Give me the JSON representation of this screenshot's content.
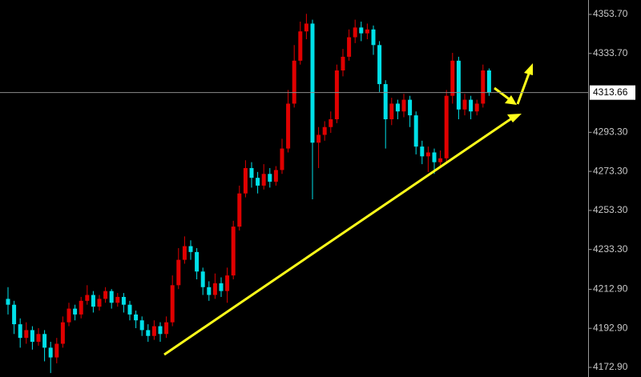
{
  "chart_data": {
    "type": "candlestick",
    "up_color": "#e00000",
    "down_color": "#00e0e8",
    "ylim": [
      4167.98,
      4361.08
    ],
    "yticks": [
      {
        "value": 4353.7,
        "label": "4353.70"
      },
      {
        "value": 4333.7,
        "label": "4333.70"
      },
      {
        "value": 4293.3,
        "label": "4293.30"
      },
      {
        "value": 4273.3,
        "label": "4273.30"
      },
      {
        "value": 4253.3,
        "label": "4253.30"
      },
      {
        "value": 4233.3,
        "label": "4233.30"
      },
      {
        "value": 4212.9,
        "label": "4212.90"
      },
      {
        "value": 4192.9,
        "label": "4192.90"
      },
      {
        "value": 4172.9,
        "label": "4172.90"
      }
    ],
    "current_price": {
      "value": 4313.66,
      "label": "4313.66"
    },
    "open": [
      4208,
      4205,
      4195,
      4188,
      4192,
      4186,
      4190,
      4183,
      4178,
      4185,
      4196,
      4203,
      4200,
      4207,
      4210,
      4204,
      4208,
      4212,
      4206,
      4209,
      4205,
      4200,
      4197,
      4192,
      4189,
      4194,
      4190,
      4196,
      4215,
      4228,
      4235,
      4232,
      4222,
      4214,
      4210,
      4216,
      4212,
      4220,
      4245,
      4262,
      4275,
      4270,
      4266,
      4272,
      4268,
      4274,
      4285,
      4308,
      4330,
      4345,
      4349,
      4288,
      4292,
      4296,
      4300,
      4325,
      4332,
      4342,
      4347,
      4344,
      4346,
      4338,
      4318,
      4300,
      4308,
      4304,
      4310,
      4302,
      4286,
      4281,
      4283,
      4278,
      4280,
      4312,
      4330,
      4305,
      4310,
      4304,
      4308,
      4325
    ],
    "high": [
      4214,
      4207,
      4198,
      4196,
      4194,
      4193,
      4192,
      4186,
      4188,
      4199,
      4206,
      4205,
      4209,
      4215,
      4212,
      4210,
      4214,
      4213,
      4211,
      4211,
      4207,
      4202,
      4199,
      4195,
      4197,
      4196,
      4199,
      4220,
      4234,
      4240,
      4238,
      4234,
      4224,
      4217,
      4221,
      4219,
      4224,
      4248,
      4266,
      4279,
      4278,
      4273,
      4277,
      4275,
      4276,
      4290,
      4315,
      4338,
      4350,
      4354,
      4351,
      4296,
      4299,
      4304,
      4328,
      4336,
      4346,
      4351,
      4350,
      4349,
      4348,
      4340,
      4320,
      4311,
      4310,
      4313,
      4312,
      4304,
      4289,
      4286,
      4285,
      4284,
      4315,
      4334,
      4332,
      4313,
      4312,
      4310,
      4328,
      4326
    ],
    "low": [
      4200,
      4190,
      4183,
      4185,
      4182,
      4184,
      4176,
      4170,
      4175,
      4183,
      4194,
      4197,
      4198,
      4205,
      4201,
      4202,
      4206,
      4203,
      4204,
      4201,
      4197,
      4193,
      4189,
      4186,
      4187,
      4186,
      4188,
      4194,
      4213,
      4226,
      4228,
      4218,
      4210,
      4207,
      4208,
      4209,
      4206,
      4218,
      4243,
      4260,
      4265,
      4262,
      4264,
      4265,
      4266,
      4272,
      4283,
      4306,
      4328,
      4341,
      4259,
      4275,
      4289,
      4293,
      4298,
      4322,
      4330,
      4339,
      4340,
      4341,
      4333,
      4314,
      4285,
      4297,
      4300,
      4301,
      4296,
      4282,
      4277,
      4273,
      4272,
      4275,
      4278,
      4308,
      4300,
      4302,
      4300,
      4302,
      4306,
      4312
    ],
    "close": [
      4205,
      4195,
      4188,
      4192,
      4186,
      4190,
      4183,
      4178,
      4185,
      4196,
      4203,
      4200,
      4207,
      4210,
      4204,
      4208,
      4212,
      4206,
      4209,
      4205,
      4200,
      4197,
      4192,
      4189,
      4194,
      4190,
      4196,
      4215,
      4228,
      4235,
      4232,
      4222,
      4214,
      4210,
      4216,
      4212,
      4220,
      4245,
      4262,
      4275,
      4270,
      4266,
      4272,
      4268,
      4274,
      4285,
      4308,
      4330,
      4345,
      4349,
      4288,
      4292,
      4296,
      4300,
      4325,
      4332,
      4342,
      4347,
      4344,
      4346,
      4338,
      4318,
      4300,
      4308,
      4304,
      4310,
      4302,
      4286,
      4281,
      4283,
      4278,
      4280,
      4312,
      4330,
      4305,
      4310,
      4304,
      4308,
      4325,
      4313.66
    ]
  }
}
